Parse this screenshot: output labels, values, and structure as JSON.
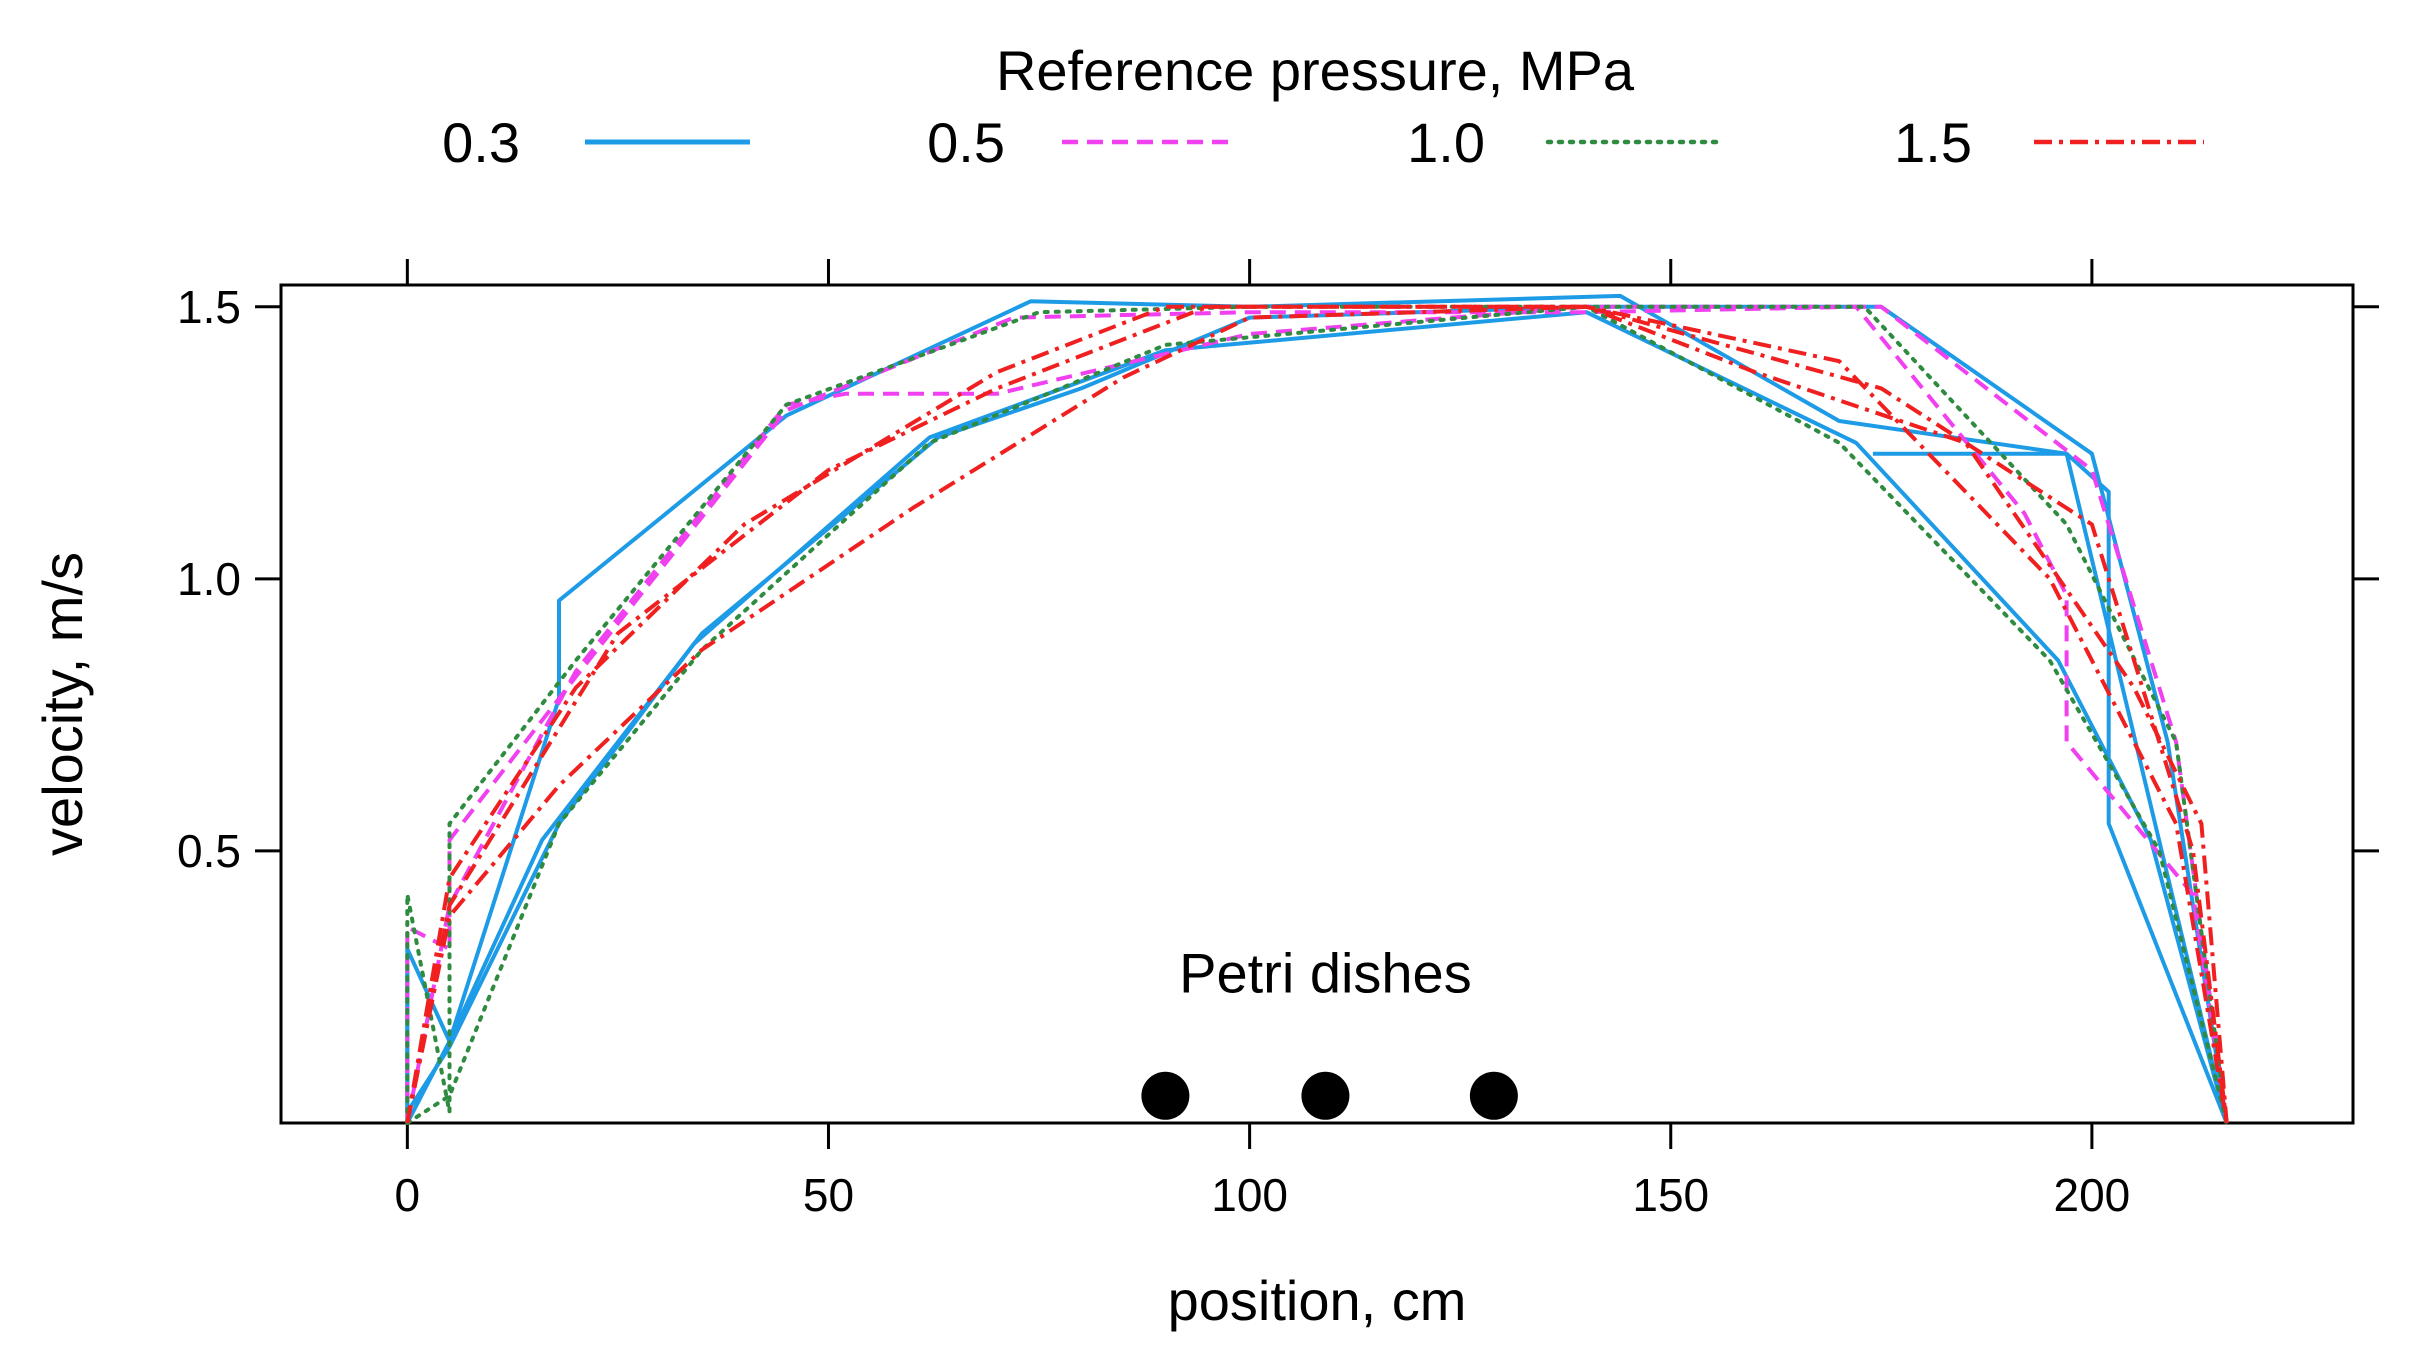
{
  "chart_data": {
    "type": "line",
    "title": "",
    "legend": {
      "title": "Reference pressure, MPa",
      "placement": "top",
      "entries": [
        "0.3",
        "0.5",
        "1.0",
        "1.5"
      ]
    },
    "xlabel": "position, cm",
    "ylabel": "velocity,  m/s",
    "xlim": [
      -15,
      231
    ],
    "ylim": [
      0,
      1.54
    ],
    "xticks": [
      0,
      50,
      100,
      150,
      200
    ],
    "yticks": [
      0.5,
      1.0,
      1.5
    ],
    "xtick_labels": [
      "0",
      "50",
      "100",
      "150",
      "200"
    ],
    "ytick_labels": [
      "0.5",
      "1.0",
      "1.5"
    ],
    "annotation": {
      "text": "Petri dishes",
      "x": 109,
      "y": 0.24
    },
    "markers": {
      "name": "Petri dishes",
      "x": [
        90,
        109,
        129
      ],
      "y": [
        0.05,
        0.05,
        0.05
      ]
    },
    "series": [
      {
        "name": "0.3",
        "color": "#1e9be6",
        "dash": "solid",
        "lines": [
          {
            "x": [
              0,
              0,
              5,
              18,
              18,
              45,
              74,
              100,
              144,
              170,
              197,
              202,
              202,
              216
            ],
            "y": [
              0,
              0.32,
              0.15,
              0.78,
              0.96,
              1.3,
              1.51,
              1.5,
              1.52,
              1.29,
              1.23,
              1.16,
              0.55,
              0
            ]
          },
          {
            "x": [
              0,
              5,
              16,
              35,
              63,
              80,
              100,
              140,
              175,
              200,
              209,
              216
            ],
            "y": [
              0,
              0.15,
              0.52,
              0.9,
              1.26,
              1.35,
              1.48,
              1.5,
              1.5,
              1.23,
              0.7,
              0
            ]
          },
          {
            "x": [
              0,
              0,
              5,
              18,
              34,
              62,
              90,
              140,
              172,
              196,
              207,
              216
            ],
            "y": [
              0.28,
              0.02,
              0.14,
              0.55,
              0.88,
              1.26,
              1.42,
              1.49,
              1.25,
              0.85,
              0.52,
              0
            ]
          },
          {
            "x": [
              174,
              197,
              216
            ],
            "y": [
              1.23,
              1.23,
              0
            ]
          }
        ]
      },
      {
        "name": "0.5",
        "color": "#f040f0",
        "dash": "dashed",
        "lines": [
          {
            "x": [
              0,
              0,
              5,
              5,
              20,
              45,
              72,
              100,
              140,
              172,
              192,
              197,
              197,
              212,
              216
            ],
            "y": [
              0,
              0.36,
              0.32,
              0.52,
              0.82,
              1.31,
              1.48,
              1.49,
              1.49,
              1.5,
              1.12,
              0.97,
              0.7,
              0.42,
              0
            ]
          },
          {
            "x": [
              0,
              5,
              20,
              45,
              52,
              70,
              100,
              140,
              175,
              200,
              210,
              216
            ],
            "y": [
              0,
              0.4,
              0.83,
              1.32,
              1.34,
              1.34,
              1.45,
              1.5,
              1.5,
              1.2,
              0.7,
              0
            ]
          }
        ]
      },
      {
        "name": "1.0",
        "color": "#2e8b40",
        "dash": "dotted",
        "lines": [
          {
            "x": [
              0,
              0,
              5,
              5,
              20,
              45,
              75,
              100,
              140,
              173,
              197,
              210,
              216
            ],
            "y": [
              0,
              0.42,
              0.02,
              0.55,
              0.85,
              1.32,
              1.49,
              1.5,
              1.5,
              1.5,
              1.1,
              0.7,
              0
            ]
          },
          {
            "x": [
              0,
              5,
              18,
              35,
              62,
              90,
              140,
              170,
              195,
              208,
              216
            ],
            "y": [
              0,
              0.05,
              0.55,
              0.87,
              1.25,
              1.43,
              1.5,
              1.25,
              0.85,
              0.5,
              0
            ]
          }
        ]
      },
      {
        "name": "1.5",
        "color": "#f02020",
        "dash": "dashdot",
        "lines": [
          {
            "x": [
              0,
              5,
              18,
              35,
              60,
              85,
              100,
              140,
              170,
              195,
              210,
              216
            ],
            "y": [
              0,
              0.38,
              0.62,
              0.87,
              1.13,
              1.37,
              1.48,
              1.5,
              1.4,
              1.0,
              0.55,
              0
            ]
          },
          {
            "x": [
              0,
              5,
              20,
              40,
              70,
              90,
              140,
              175,
              200,
              212,
              216
            ],
            "y": [
              0,
              0.45,
              0.8,
              1.1,
              1.38,
              1.5,
              1.5,
              1.35,
              1.1,
              0.5,
              0
            ]
          },
          {
            "x": [
              0,
              5,
              25,
              50,
              70,
              95,
              140,
              160,
              185,
              205,
              213,
              216
            ],
            "y": [
              0,
              0.4,
              0.9,
              1.2,
              1.35,
              1.5,
              1.5,
              1.38,
              1.25,
              0.8,
              0.55,
              0
            ]
          }
        ]
      }
    ]
  }
}
